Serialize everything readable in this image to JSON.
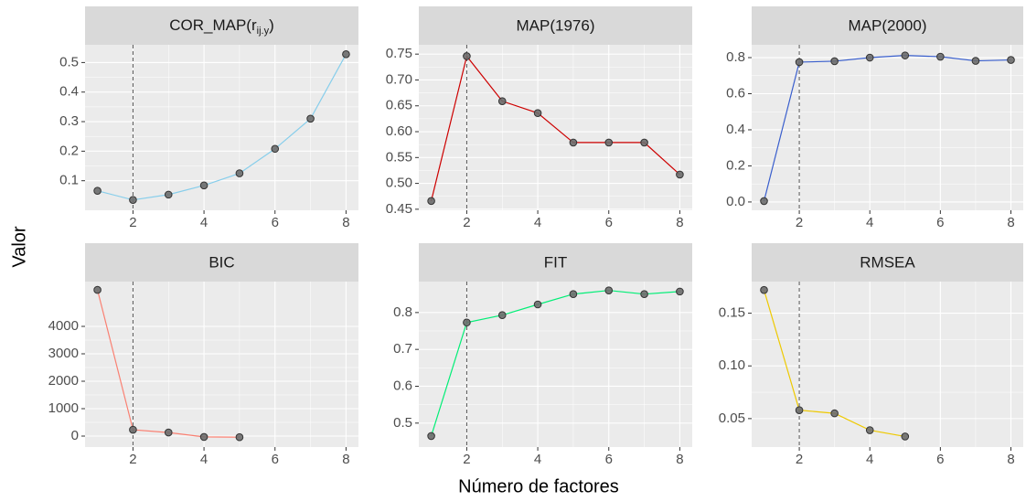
{
  "x_label": "Número de factores",
  "y_label": "Valor",
  "chart_data": [
    {
      "type": "line",
      "title": [
        "COR_MAP(r",
        "ij.y",
        ")"
      ],
      "x": [
        1,
        2,
        3,
        4,
        5,
        6,
        7,
        8
      ],
      "values": [
        0.066,
        0.035,
        0.053,
        0.084,
        0.125,
        0.208,
        0.31,
        0.528
      ],
      "color": "#87ceeb",
      "xlim": [
        0.65,
        8.35
      ],
      "ylim": [
        0.0,
        0.56
      ],
      "xticks": [
        2,
        4,
        6,
        8
      ],
      "yticks": [
        0.1,
        0.2,
        0.3,
        0.4,
        0.5
      ],
      "vline": 2,
      "grid": true
    },
    {
      "type": "line",
      "title": "MAP(1976)",
      "x": [
        1,
        2,
        3,
        4,
        5,
        6,
        7,
        8
      ],
      "values": [
        0.466,
        0.746,
        0.659,
        0.636,
        0.579,
        0.579,
        0.579,
        0.517
      ],
      "color": "#cd0000",
      "xlim": [
        0.65,
        8.35
      ],
      "ylim": [
        0.448,
        0.768
      ],
      "xticks": [
        2,
        4,
        6,
        8
      ],
      "yticks": [
        0.45,
        {
          "value": 0.5,
          "label": "0.50"
        },
        0.55,
        {
          "value": 0.6,
          "label": "0.60"
        },
        0.65,
        {
          "value": 0.7,
          "label": "0.70"
        },
        0.75
      ],
      "vline": 2,
      "grid": true
    },
    {
      "type": "line",
      "title": "MAP(2000)",
      "x": [
        1,
        2,
        3,
        4,
        5,
        6,
        7,
        8
      ],
      "values": [
        0.005,
        0.775,
        0.78,
        0.8,
        0.812,
        0.805,
        0.782,
        0.787
      ],
      "color": "#3a5fcd",
      "xlim": [
        0.65,
        8.35
      ],
      "ylim": [
        -0.046,
        0.871
      ],
      "xticks": [
        2,
        4,
        6,
        8
      ],
      "yticks": [
        {
          "value": 0,
          "label": "0.0"
        },
        0.2,
        0.4,
        0.6,
        0.8
      ],
      "vline": 2,
      "grid": true
    },
    {
      "type": "line",
      "title": "BIC",
      "x": [
        1,
        2,
        3,
        4,
        5,
        6,
        7,
        8
      ],
      "values": [
        5330,
        230,
        130,
        -30,
        -40,
        null,
        null,
        null
      ],
      "color": "#fa8072",
      "xlim": [
        0.65,
        8.35
      ],
      "ylim": [
        -400,
        5633
      ],
      "xticks": [
        2,
        4,
        6,
        8
      ],
      "yticks": [
        0,
        1000,
        2000,
        3000,
        4000
      ],
      "vline": 2,
      "grid": true
    },
    {
      "type": "line",
      "title": "FIT",
      "x": [
        1,
        2,
        3,
        4,
        5,
        6,
        7,
        8
      ],
      "values": [
        0.465,
        0.773,
        0.793,
        0.822,
        0.85,
        0.86,
        0.85,
        0.857
      ],
      "color": "#00ee76",
      "xlim": [
        0.65,
        8.35
      ],
      "ylim": [
        0.435,
        0.884
      ],
      "xticks": [
        2,
        4,
        6,
        8
      ],
      "yticks": [
        0.5,
        0.6,
        0.7,
        0.8
      ],
      "vline": 2,
      "grid": true
    },
    {
      "type": "line",
      "title": "RMSEA",
      "x": [
        1,
        2,
        3,
        4,
        5,
        6,
        7,
        8
      ],
      "values": [
        0.172,
        0.058,
        0.055,
        0.039,
        0.033,
        null,
        null,
        null
      ],
      "color": "#eec900",
      "xlim": [
        0.65,
        8.35
      ],
      "ylim": [
        0.023,
        0.18
      ],
      "xticks": [
        2,
        4,
        6,
        8
      ],
      "yticks": [
        {
          "value": 0.05,
          "label": "0.05"
        },
        {
          "value": 0.1,
          "label": "0.10"
        },
        {
          "value": 0.15,
          "label": "0.15"
        }
      ],
      "vline": 2,
      "grid": true
    }
  ]
}
